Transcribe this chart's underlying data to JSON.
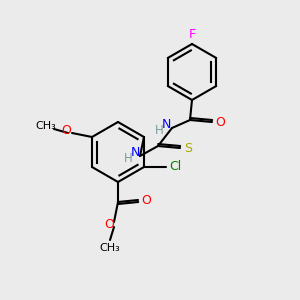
{
  "bg_color": "#ebebeb",
  "atom_colors": {
    "C": "#000000",
    "H": "#7a9a9a",
    "N": "#0000ff",
    "O": "#ff0000",
    "S": "#aaaa00",
    "F": "#ff00ff",
    "Cl": "#008000"
  },
  "bond_color": "#000000",
  "bond_width": 1.5
}
